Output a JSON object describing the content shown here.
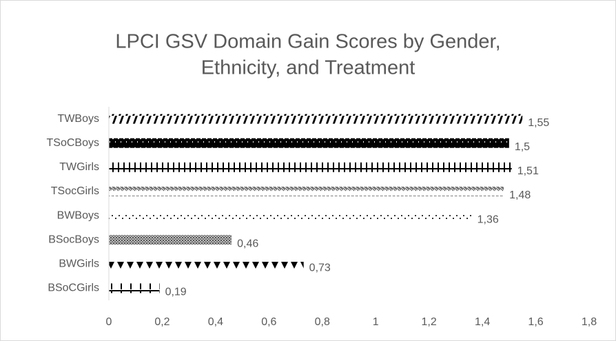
{
  "chart_data": {
    "type": "bar",
    "orientation": "horizontal",
    "title": [
      "LPCI GSV Domain Gain Scores by Gender,",
      "Ethnicity, and Treatment"
    ],
    "categories": [
      "TWBoys",
      "TSoCBoys",
      "TWGirls",
      "TSocGirls",
      "BWBoys",
      "BSocBoys",
      "BWGirls",
      "BSoCGirls"
    ],
    "values": [
      1.55,
      1.5,
      1.51,
      1.48,
      1.36,
      0.46,
      0.73,
      0.19
    ],
    "value_labels": [
      "1,55",
      "1,5",
      "1,51",
      "1,48",
      "1,36",
      "0,46",
      "0,73",
      "0,19"
    ],
    "color": "#000000",
    "xlim": [
      0,
      1.8
    ],
    "xticks": [
      0,
      {
        "value": 0.2,
        "label": "0,2"
      },
      {
        "value": 0.4,
        "label": "0,4"
      },
      {
        "value": 0.6,
        "label": "0,6"
      },
      {
        "value": 0.8,
        "label": "0,8"
      },
      1,
      {
        "value": 1.2,
        "label": "1,2"
      },
      {
        "value": 1.4,
        "label": "1,4"
      },
      {
        "value": 1.6,
        "label": "1,6"
      },
      {
        "value": 1.8,
        "label": "1,8"
      }
    ],
    "grid": false
  }
}
